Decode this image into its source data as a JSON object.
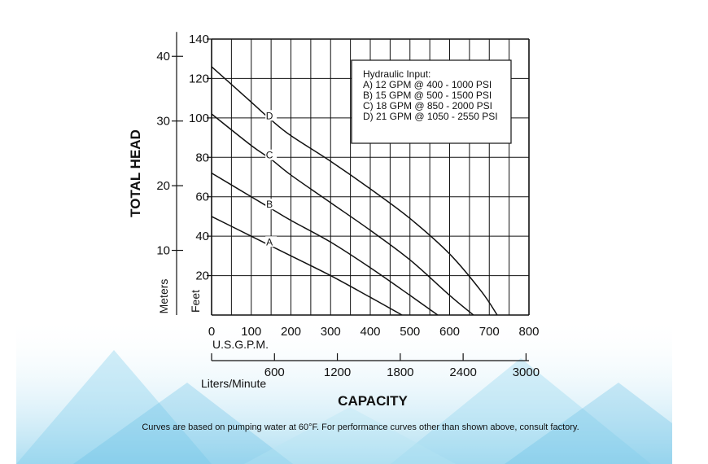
{
  "chart_data": {
    "type": "line",
    "yaxis_feet": {
      "label": "Feet",
      "ticks": [
        "140",
        "120",
        "100",
        "80",
        "60",
        "40",
        "20"
      ],
      "tick_values": [
        140,
        120,
        100,
        80,
        60,
        40,
        20
      ],
      "ylim": [
        0,
        140
      ]
    },
    "yaxis_meters": {
      "label": "Meters",
      "ticks": [
        "40",
        "30",
        "20",
        "10"
      ],
      "tick_values": [
        40,
        30,
        20,
        10
      ]
    },
    "y_title": "TOTAL HEAD",
    "xaxis_gpm": {
      "label": "U.S.G.P.M.",
      "ticks": [
        "0",
        "100",
        "200",
        "300",
        "400",
        "500",
        "600",
        "700",
        "800"
      ],
      "tick_values": [
        0,
        100,
        200,
        300,
        400,
        500,
        600,
        700,
        800
      ],
      "xlim": [
        0,
        800
      ]
    },
    "xaxis_lpm": {
      "label": "Liters/Minute",
      "ticks": [
        "600",
        "1200",
        "1800",
        "2400",
        "3000"
      ],
      "tick_values": [
        600,
        1200,
        1800,
        2400,
        3000
      ]
    },
    "x_title": "CAPACITY",
    "legend": {
      "title": "Hydraulic Input:",
      "entries": [
        "A) 12 GPM @ 400 - 1000 PSI",
        "B) 15 GPM @ 500 - 1500 PSI",
        "C) 18 GPM @ 850 - 2000 PSI",
        "D) 21 GPM @ 1050 - 2550 PSI"
      ],
      "placement": "top-right"
    },
    "series": [
      {
        "name": "A",
        "x": [
          0,
          100,
          150,
          200,
          300,
          400,
          480
        ],
        "y": [
          50,
          40,
          35,
          30,
          20,
          9,
          0
        ]
      },
      {
        "name": "B",
        "x": [
          0,
          100,
          150,
          200,
          300,
          400,
          500,
          570
        ],
        "y": [
          72,
          60,
          54,
          48,
          37,
          24,
          10,
          0
        ]
      },
      {
        "name": "C",
        "x": [
          0,
          100,
          150,
          200,
          300,
          400,
          500,
          600,
          660
        ],
        "y": [
          102,
          86,
          79,
          71,
          57,
          43,
          28,
          10,
          0
        ]
      },
      {
        "name": "D",
        "x": [
          0,
          100,
          150,
          200,
          300,
          400,
          500,
          600,
          680,
          720
        ],
        "y": [
          126,
          108,
          99,
          91,
          78,
          64,
          49,
          31,
          12,
          0
        ]
      }
    ],
    "grid": true
  },
  "footnote": "Curves are based on pumping water at 60°F. For performance curves other than shown above, consult factory."
}
